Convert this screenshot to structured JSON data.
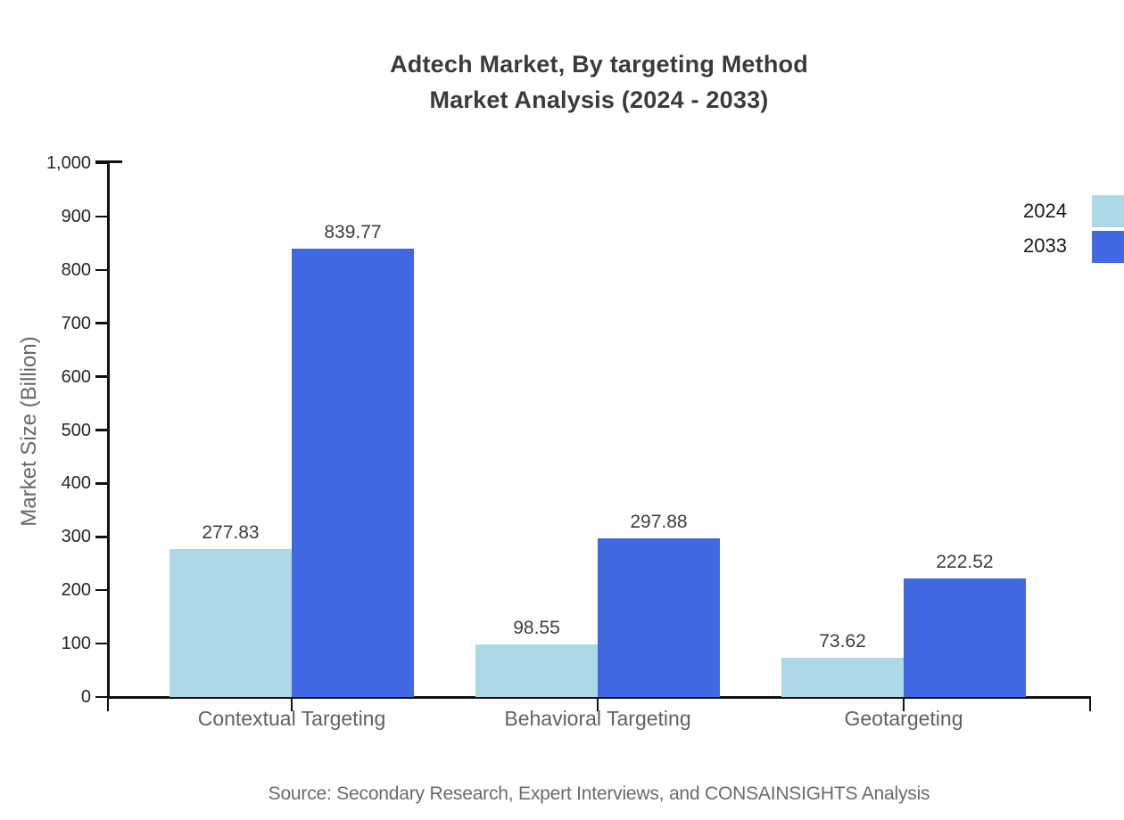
{
  "title": {
    "line1": "Adtech Market, By targeting Method",
    "line2": "Market Analysis (2024 - 2033)"
  },
  "source": "Source: Secondary Research, Expert Interviews, and CONSAINSIGHTS Analysis",
  "chart_data": {
    "type": "bar",
    "categories": [
      "Contextual Targeting",
      "Behavioral Targeting",
      "Geotargeting"
    ],
    "series": [
      {
        "name": "2024",
        "color": "#ADD8E6",
        "values": [
          277.83,
          98.55,
          73.62
        ]
      },
      {
        "name": "2033",
        "color": "#4169E1",
        "values": [
          839.77,
          297.88,
          222.52
        ]
      }
    ],
    "value_labels": [
      "277.83",
      "839.77",
      "98.55",
      "297.88",
      "73.62",
      "222.52"
    ],
    "xlabel": "",
    "ylabel": "Market Size (Billion)",
    "ylim": [
      0,
      1000
    ],
    "ytick_step": 100,
    "ytick_labels": [
      "0",
      "100",
      "200",
      "300",
      "400",
      "500",
      "600",
      "700",
      "800",
      "900",
      "1,000"
    ],
    "grid": false,
    "legend_position": "right-edge",
    "bar_orientation": "vertical"
  },
  "colors": {
    "background": "#ffffff",
    "axis": "#111111",
    "title_text": "#3b3b3b",
    "tick_text": "#262626",
    "category_text": "#616161",
    "value_text": "#3d3d3d",
    "muted_text": "#6b6b6b",
    "series_2024": "#ADD8E6",
    "series_2033": "#4169E1"
  }
}
